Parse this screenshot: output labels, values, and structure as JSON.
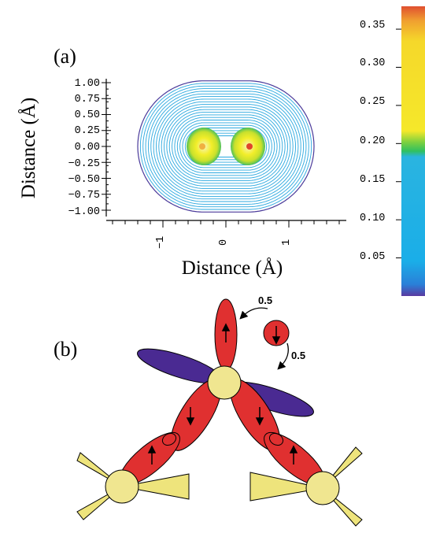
{
  "panel_a": {
    "label": "(a)",
    "y_axis_title": "Distance (Å)",
    "x_axis_title": "Distance (Å)",
    "y_ticks": [
      "1.00",
      "0.75",
      "0.50",
      "0.25",
      "0.00",
      "−0.25",
      "−0.50",
      "−0.75",
      "−1.00"
    ],
    "x_ticks": [
      "−1",
      "0",
      "1"
    ],
    "colorbar_ticks": [
      "0.35",
      "0.30",
      "0.25",
      "0.20",
      "0.15",
      "0.10",
      "0.05"
    ],
    "colors": {
      "outer_contour": "#4a3a9a",
      "contour": "#2aa8df",
      "core_yellow": "#f2ee2a",
      "core_green": "#4cc05a",
      "core_red": "#e0442a"
    }
  },
  "panel_b": {
    "label": "(b)",
    "transfer_labels": [
      "0.5",
      "0.5"
    ],
    "colors": {
      "red_lobe": "#e03030",
      "purple_lobe": "#4a2a92",
      "atom": "#f0e690",
      "ligand": "#eee47c"
    }
  },
  "chart_data": {
    "type": "heatmap",
    "xlabel": "Distance (Å)",
    "ylabel": "Distance (Å)",
    "xlim": [
      -2.0,
      2.0
    ],
    "ylim": [
      -1.1,
      1.1
    ],
    "x_ticks": [
      -1,
      0,
      1
    ],
    "y_ticks": [
      1.0,
      0.75,
      0.5,
      0.25,
      0.0,
      -0.25,
      -0.5,
      -0.75,
      -1.0
    ],
    "colorbar": {
      "ticks": [
        0.35,
        0.3,
        0.25,
        0.2,
        0.15,
        0.1,
        0.05
      ],
      "range": [
        0.0,
        0.38
      ],
      "colors": [
        "#5a3aa0",
        "#1aaee8",
        "#30c060",
        "#f5e82a",
        "#f0a030",
        "#e05030"
      ]
    },
    "peaks": [
      {
        "x": -0.35,
        "y": 0.0
      },
      {
        "x": 0.35,
        "y": 0.0
      }
    ]
  }
}
